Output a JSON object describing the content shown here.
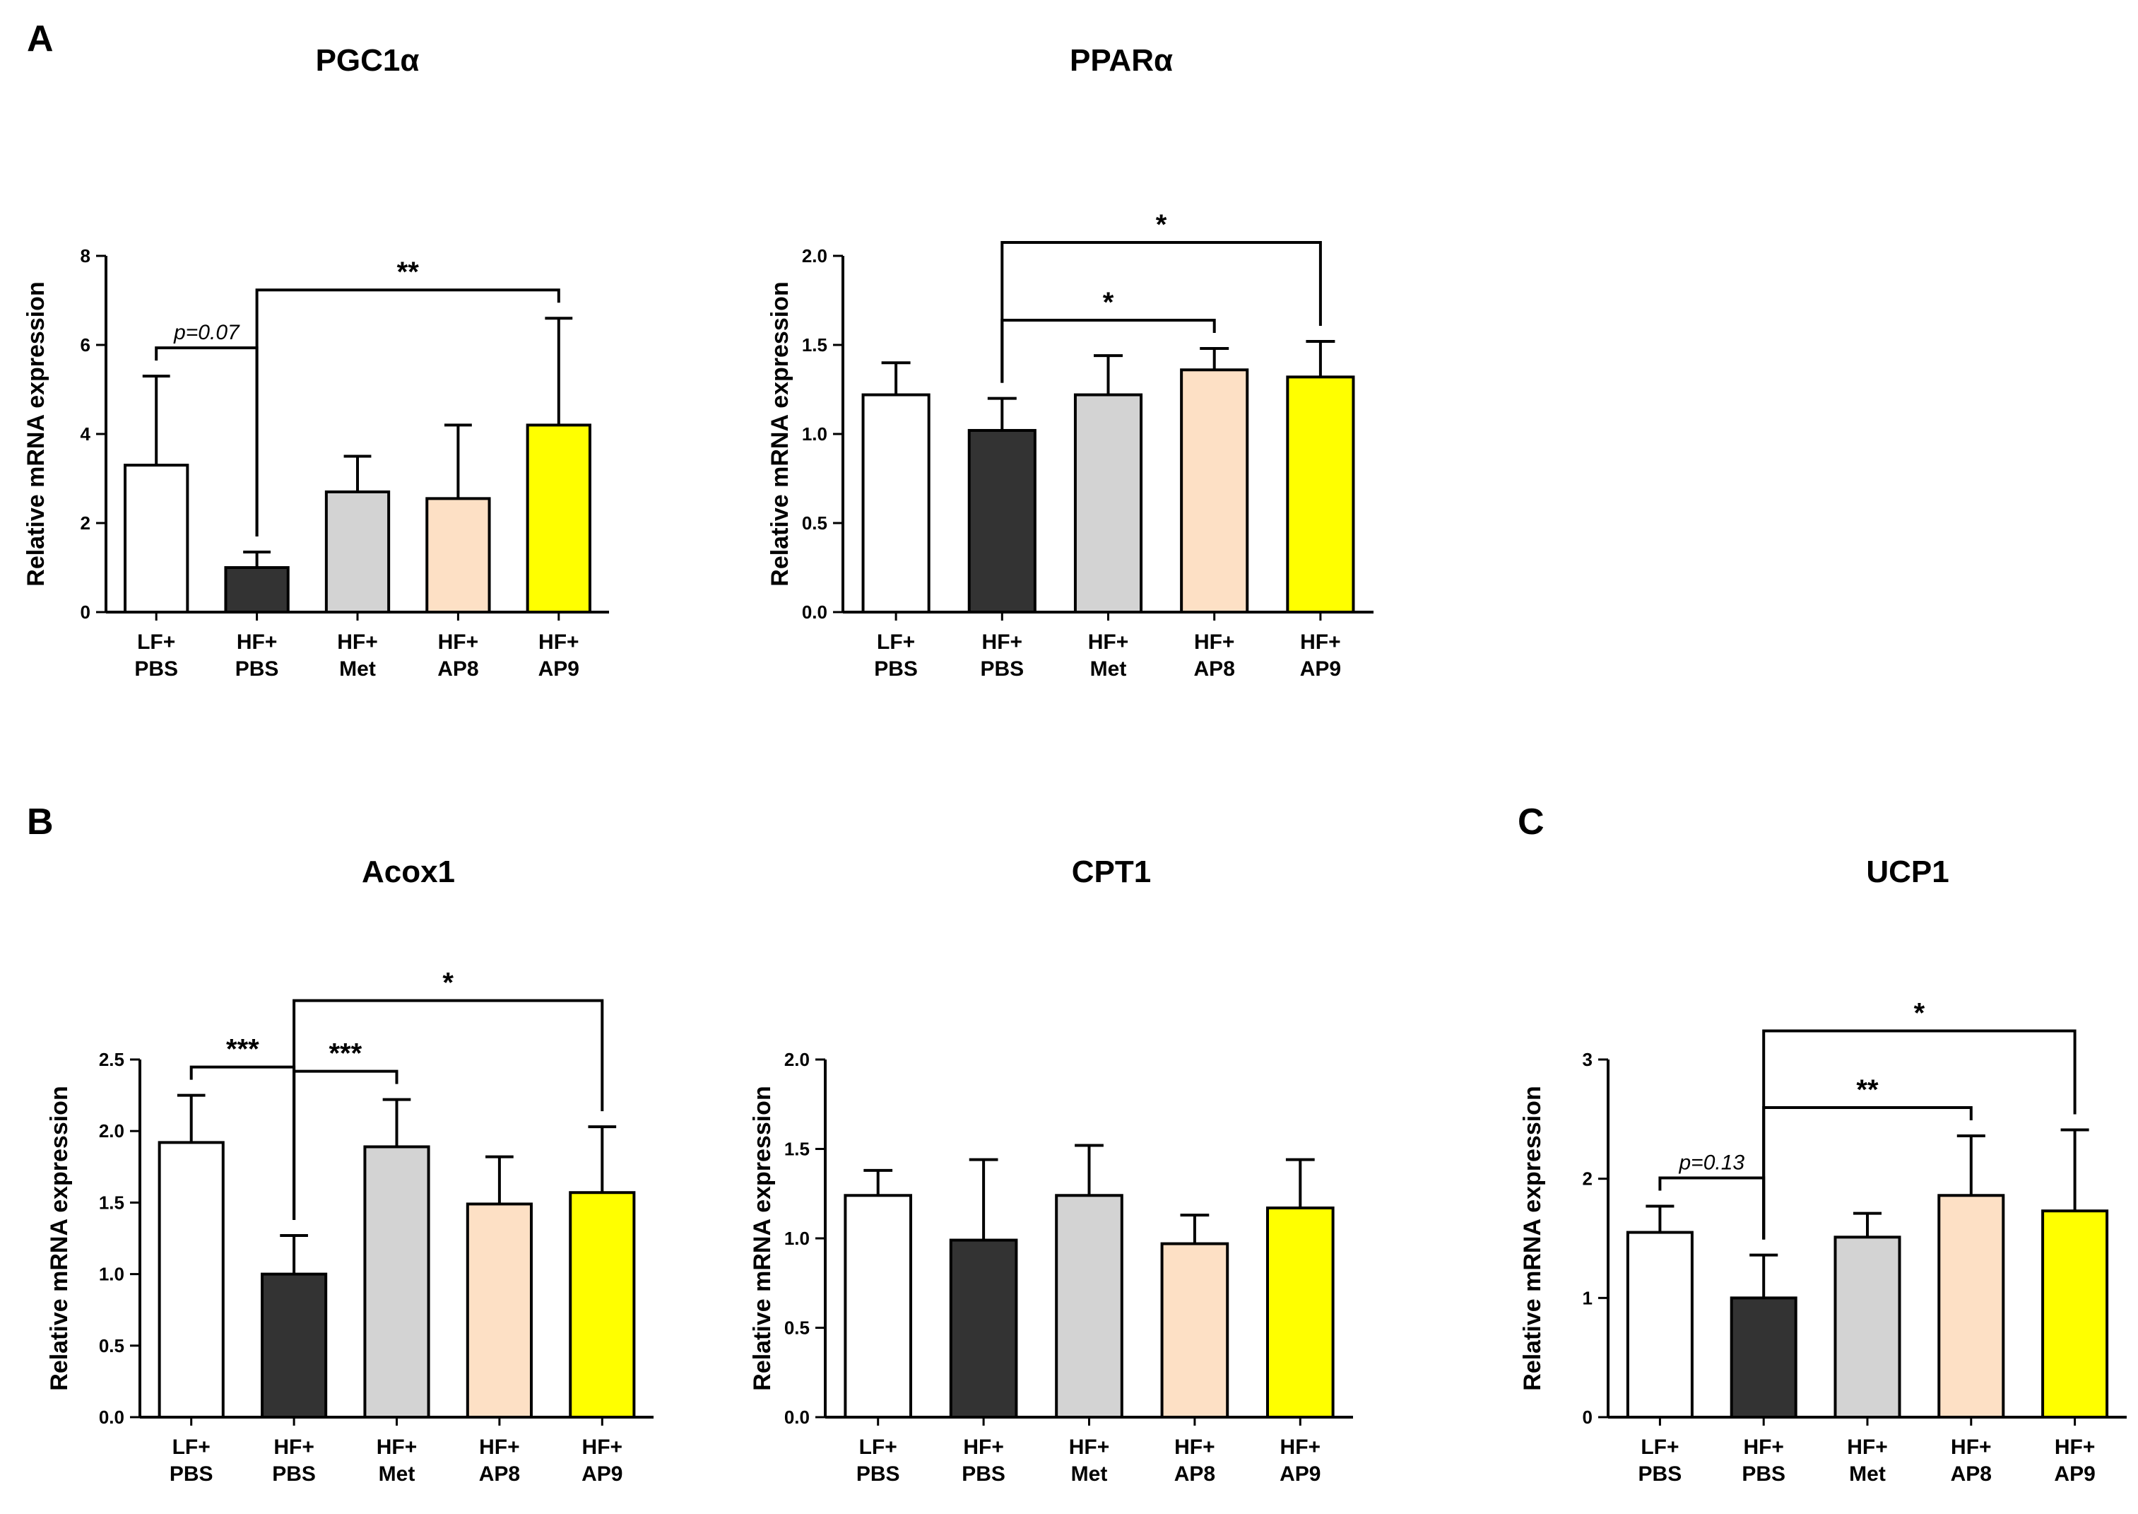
{
  "panel_letters": [
    "A",
    "B",
    "C"
  ],
  "colors": {
    "LF+PBS": "#ffffff",
    "HF+PBS": "#333333",
    "HF+Met": "#d3d3d3",
    "HF+AP8": "#fde0c5",
    "HF+AP9": "#ffff00",
    "stroke": "#000000"
  },
  "chart_data": [
    {
      "type": "bar",
      "title": "PGC1α",
      "ylabel": "Relative mRNA expression",
      "categories": [
        [
          "LF+",
          "PBS"
        ],
        [
          "HF+",
          "PBS"
        ],
        [
          "HF+",
          "Met"
        ],
        [
          "HF+",
          "AP8"
        ],
        [
          "HF+",
          "AP9"
        ]
      ],
      "values": [
        3.3,
        1.0,
        2.7,
        2.55,
        4.2
      ],
      "errors": [
        2.0,
        0.35,
        0.8,
        1.65,
        2.4
      ],
      "ylim": [
        0,
        8
      ],
      "yticks": [
        "0",
        "2",
        "4",
        "6",
        "8"
      ],
      "annotations": [
        {
          "from": 0,
          "to": 1,
          "label": "p=0.07",
          "italic": true
        },
        {
          "from": 1,
          "to": 4,
          "label": "**",
          "italic": false
        }
      ]
    },
    {
      "type": "bar",
      "title": "PPARα",
      "ylabel": "Relative mRNA expression",
      "categories": [
        [
          "LF+",
          "PBS"
        ],
        [
          "HF+",
          "PBS"
        ],
        [
          "HF+",
          "Met"
        ],
        [
          "HF+",
          "AP8"
        ],
        [
          "HF+",
          "AP9"
        ]
      ],
      "values": [
        1.22,
        1.02,
        1.22,
        1.36,
        1.32
      ],
      "errors": [
        0.18,
        0.18,
        0.22,
        0.12,
        0.2
      ],
      "ylim": [
        0,
        2.0
      ],
      "yticks": [
        "0.0",
        "0.5",
        "1.0",
        "1.5",
        "2.0"
      ],
      "annotations": [
        {
          "from": 1,
          "to": 3,
          "label": "*",
          "italic": false
        },
        {
          "from": 1,
          "to": 4,
          "label": "*",
          "italic": false
        }
      ]
    },
    {
      "type": "bar",
      "title": "Acox1",
      "ylabel": "Relative mRNA expression",
      "categories": [
        [
          "LF+",
          "PBS"
        ],
        [
          "HF+",
          "PBS"
        ],
        [
          "HF+",
          "Met"
        ],
        [
          "HF+",
          "AP8"
        ],
        [
          "HF+",
          "AP9"
        ]
      ],
      "values": [
        1.92,
        1.0,
        1.89,
        1.49,
        1.57
      ],
      "errors": [
        0.33,
        0.27,
        0.33,
        0.33,
        0.46
      ],
      "ylim": [
        0,
        2.5
      ],
      "yticks": [
        "0.0",
        "0.5",
        "1.0",
        "1.5",
        "2.0",
        "2.5"
      ],
      "annotations": [
        {
          "from": 0,
          "to": 1,
          "label": "***",
          "italic": false
        },
        {
          "from": 1,
          "to": 2,
          "label": "***",
          "italic": false
        },
        {
          "from": 1,
          "to": 4,
          "label": "*",
          "italic": false
        }
      ]
    },
    {
      "type": "bar",
      "title": "CPT1",
      "ylabel": "Relative mRNA expression",
      "categories": [
        [
          "LF+",
          "PBS"
        ],
        [
          "HF+",
          "PBS"
        ],
        [
          "HF+",
          "Met"
        ],
        [
          "HF+",
          "AP8"
        ],
        [
          "HF+",
          "AP9"
        ]
      ],
      "values": [
        1.24,
        0.99,
        1.24,
        0.97,
        1.17
      ],
      "errors": [
        0.14,
        0.45,
        0.28,
        0.16,
        0.27
      ],
      "ylim": [
        0,
        2.0
      ],
      "yticks": [
        "0.0",
        "0.5",
        "1.0",
        "1.5",
        "2.0"
      ],
      "annotations": []
    },
    {
      "type": "bar",
      "title": "UCP1",
      "ylabel": "Relative mRNA expression",
      "categories": [
        [
          "LF+",
          "PBS"
        ],
        [
          "HF+",
          "PBS"
        ],
        [
          "HF+",
          "Met"
        ],
        [
          "HF+",
          "AP8"
        ],
        [
          "HF+",
          "AP9"
        ]
      ],
      "values": [
        1.55,
        1.0,
        1.51,
        1.86,
        1.73
      ],
      "errors": [
        0.22,
        0.36,
        0.2,
        0.5,
        0.68
      ],
      "ylim": [
        0,
        3
      ],
      "yticks": [
        "0",
        "1",
        "2",
        "3"
      ],
      "annotations": [
        {
          "from": 0,
          "to": 1,
          "label": "p=0.13",
          "italic": true
        },
        {
          "from": 1,
          "to": 3,
          "label": "**",
          "italic": false
        },
        {
          "from": 1,
          "to": 4,
          "label": "*",
          "italic": false
        }
      ]
    }
  ]
}
